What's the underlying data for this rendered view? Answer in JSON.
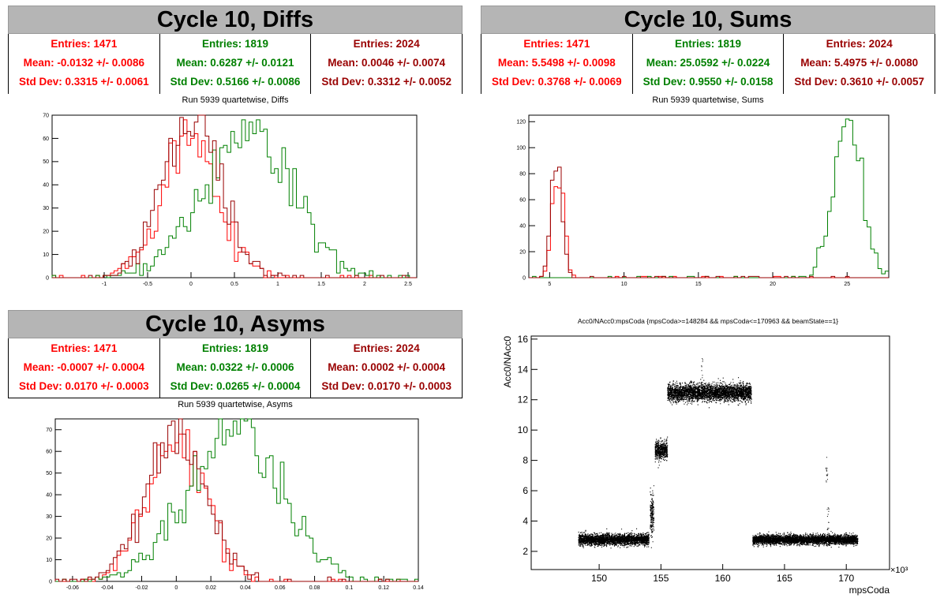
{
  "colors": {
    "red": "#ff0000",
    "green": "#008000",
    "darkred": "#990000"
  },
  "panels": {
    "diffs": {
      "title": "Cycle 10, Diffs",
      "stats": [
        {
          "entries": "Entries: 1471",
          "mean": "Mean: -0.0132 +/- 0.0086",
          "std": "Std Dev: 0.3315 +/- 0.0061",
          "color": "#ff0000"
        },
        {
          "entries": "Entries: 1819",
          "mean": "Mean: 0.6287 +/- 0.0121",
          "std": "Std Dev: 0.5166 +/- 0.0086",
          "color": "#008000"
        },
        {
          "entries": "Entries: 2024",
          "mean": "Mean: 0.0046 +/- 0.0074",
          "std": "Std Dev: 0.3312 +/- 0.0052",
          "color": "#990000"
        }
      ],
      "subtitle": "Run 5939 quartetwise, Diffs"
    },
    "sums": {
      "title": "Cycle 10, Sums",
      "stats": [
        {
          "entries": "Entries: 1471",
          "mean": "Mean: 5.5498 +/- 0.0098",
          "std": "Std Dev: 0.3768 +/- 0.0069",
          "color": "#ff0000"
        },
        {
          "entries": "Entries: 1819",
          "mean": "Mean: 25.0592 +/- 0.0224",
          "std": "Std Dev: 0.9550 +/- 0.0158",
          "color": "#008000"
        },
        {
          "entries": "Entries: 2024",
          "mean": "Mean: 5.4975 +/- 0.0080",
          "std": "Std Dev: 0.3610 +/- 0.0057",
          "color": "#990000"
        }
      ],
      "subtitle": "Run 5939 quartetwise, Sums"
    },
    "asyms": {
      "title": "Cycle 10, Asyms",
      "stats": [
        {
          "entries": "Entries: 1471",
          "mean": "Mean: -0.0007 +/- 0.0004",
          "std": "Std Dev: 0.0170 +/- 0.0003",
          "color": "#ff0000"
        },
        {
          "entries": "Entries: 1819",
          "mean": "Mean: 0.0322 +/- 0.0006",
          "std": "Std Dev: 0.0265 +/- 0.0004",
          "color": "#008000"
        },
        {
          "entries": "Entries: 2024",
          "mean": "Mean: 0.0002 +/- 0.0004",
          "std": "Std Dev: 0.0170 +/- 0.0003",
          "color": "#990000"
        }
      ],
      "subtitle": "Run 5939 quartetwise, Asyms"
    },
    "scatter": {
      "title": "Acc0/NAcc0:mpsCoda {mpsCoda>=148284 && mpsCoda<=170963 && beamState==1}"
    }
  },
  "chart_data": [
    {
      "type": "histogram",
      "name": "diffs",
      "xlim": [
        -1.6,
        2.6
      ],
      "ylim": [
        0,
        70
      ],
      "xticks": [
        -1,
        -0.5,
        0,
        0.5,
        1,
        1.5,
        2,
        2.5
      ],
      "xtick_labels": [
        "-1",
        "-0.5",
        "0",
        "0.5",
        "1",
        "1.5",
        "2",
        "2.5"
      ],
      "yticks": [
        0,
        10,
        20,
        30,
        40,
        50,
        60,
        70
      ],
      "ytick_labels": [
        "0",
        "10",
        "20",
        "30",
        "40",
        "50",
        "60",
        "70"
      ],
      "series": [
        {
          "color": "#ff0000",
          "entries": 1471,
          "mean": -0.0132,
          "std": 0.3315,
          "peak": 62
        },
        {
          "color": "#008000",
          "entries": 1819,
          "mean": 0.6287,
          "std": 0.5166,
          "peak": 63
        },
        {
          "color": "#990000",
          "entries": 2024,
          "mean": 0.0046,
          "std": 0.3312,
          "peak": 68
        }
      ]
    },
    {
      "type": "histogram",
      "name": "sums",
      "xlim": [
        3.6,
        27.8
      ],
      "ylim": [
        0,
        125
      ],
      "xticks": [
        5,
        10,
        15,
        20,
        25
      ],
      "xtick_labels": [
        "5",
        "10",
        "15",
        "20",
        "25"
      ],
      "yticks": [
        0,
        20,
        40,
        60,
        80,
        100,
        120
      ],
      "ytick_labels": [
        "0",
        "20",
        "40",
        "60",
        "80",
        "100",
        "120"
      ],
      "series": [
        {
          "color": "#ff0000",
          "entries": 1471,
          "mean": 5.5498,
          "std": 0.3768,
          "peak": 80
        },
        {
          "color": "#008000",
          "entries": 1819,
          "mean": 25.0592,
          "std": 0.955,
          "peak": 120
        },
        {
          "color": "#990000",
          "entries": 2024,
          "mean": 5.4975,
          "std": 0.361,
          "peak": 92
        }
      ]
    },
    {
      "type": "histogram",
      "name": "asyms",
      "xlim": [
        -0.07,
        0.14
      ],
      "ylim": [
        0,
        75
      ],
      "xticks": [
        -0.06,
        -0.04,
        -0.02,
        0,
        0.02,
        0.04,
        0.06,
        0.08,
        0.1,
        0.12,
        0.14
      ],
      "xtick_labels": [
        "-0.06",
        "-0.04",
        "-0.02",
        "0",
        "0.02",
        "0.04",
        "0.06",
        "0.08",
        "0.1",
        "0.12",
        "0.14"
      ],
      "yticks": [
        0,
        10,
        20,
        30,
        40,
        50,
        60,
        70
      ],
      "ytick_labels": [
        "0",
        "10",
        "20",
        "30",
        "40",
        "50",
        "60",
        "70"
      ],
      "series": [
        {
          "color": "#ff0000",
          "entries": 1471,
          "mean": -0.0007,
          "std": 0.017,
          "peak": 66
        },
        {
          "color": "#008000",
          "entries": 1819,
          "mean": 0.0322,
          "std": 0.0265,
          "peak": 72
        },
        {
          "color": "#990000",
          "entries": 2024,
          "mean": 0.0002,
          "std": 0.017,
          "peak": 69
        }
      ]
    },
    {
      "type": "scatter",
      "name": "acc0-vs-mpscoda",
      "xlabel": "mpsCoda",
      "ylabel": "Acc0/NAcc0",
      "x_multiplier_label": "×10³",
      "xlim": [
        144.5,
        173.5
      ],
      "ylim": [
        0.8,
        16.2
      ],
      "xticks": [
        150,
        155,
        160,
        165,
        170
      ],
      "xtick_labels": [
        "150",
        "155",
        "160",
        "165",
        "170"
      ],
      "yticks": [
        2,
        4,
        6,
        8,
        10,
        12,
        14,
        16
      ],
      "ytick_labels": [
        "2",
        "4",
        "6",
        "8",
        "10",
        "12",
        "14",
        "16"
      ],
      "bands": [
        {
          "x": [
            148.3,
            154.0
          ],
          "y_center": 2.8,
          "y_spread": 0.35
        },
        {
          "x": [
            154.1,
            154.4
          ],
          "y_center": 4.5,
          "y_spread": 1.5
        },
        {
          "x": [
            154.5,
            155.5
          ],
          "y_center": 8.7,
          "y_spread": 0.6
        },
        {
          "x": [
            155.5,
            162.3
          ],
          "y_center": 12.5,
          "y_spread": 0.55
        },
        {
          "x": [
            162.4,
            170.9
          ],
          "y_center": 2.8,
          "y_spread": 0.3
        }
      ]
    }
  ]
}
